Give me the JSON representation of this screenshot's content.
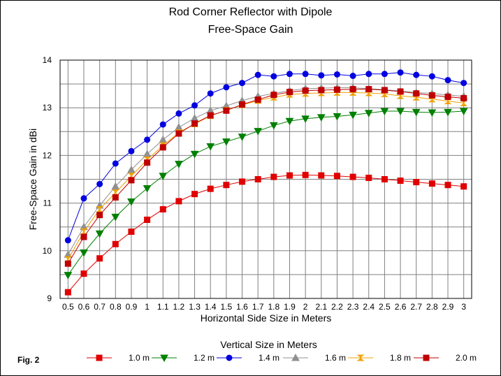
{
  "figure_label": "Fig. 2",
  "chart_data": {
    "type": "line",
    "title": "Rod Corner Reflector with Dipole",
    "subtitle": "Free-Space Gain",
    "xlabel": "Horizontal Side Size in Meters",
    "ylabel": "Free-Space Gain in dBi",
    "legend_title": "Vertical Size in Meters",
    "legend_position": "bottom",
    "grid": true,
    "ylim": [
      9,
      14
    ],
    "yticks": [
      "9",
      "10",
      "11",
      "12",
      "13",
      "14"
    ],
    "categories": [
      "0.5",
      "0.6",
      "0.7",
      "0.8",
      "0.9",
      "1",
      "1.1",
      "1.2",
      "1.3",
      "1.4",
      "1.5",
      "1.6",
      "1.7",
      "1.8",
      "1.9",
      "2",
      "2.1",
      "2.2",
      "2.3",
      "2.4",
      "2.5",
      "2.6",
      "2.7",
      "2.8",
      "2.9",
      "3"
    ],
    "series": [
      {
        "name": "1.0 m",
        "color": "#e00000",
        "marker": "square",
        "values": [
          9.13,
          9.52,
          9.84,
          10.14,
          10.4,
          10.65,
          10.87,
          11.04,
          11.19,
          11.3,
          11.38,
          11.45,
          11.5,
          11.55,
          11.58,
          11.59,
          11.58,
          11.57,
          11.55,
          11.53,
          11.5,
          11.47,
          11.44,
          11.41,
          11.38,
          11.35
        ]
      },
      {
        "name": "1.2 m",
        "color": "#008000",
        "marker": "triangle-down",
        "values": [
          9.49,
          9.96,
          10.36,
          10.71,
          11.03,
          11.31,
          11.57,
          11.82,
          12.03,
          12.19,
          12.29,
          12.39,
          12.51,
          12.63,
          12.72,
          12.77,
          12.8,
          12.82,
          12.85,
          12.89,
          12.93,
          12.93,
          12.91,
          12.9,
          12.91,
          12.93
        ]
      },
      {
        "name": "1.4 m",
        "color": "#0000e0",
        "marker": "circle",
        "values": [
          10.22,
          11.1,
          11.4,
          11.83,
          12.09,
          12.33,
          12.65,
          12.88,
          13.05,
          13.3,
          13.43,
          13.52,
          13.69,
          13.66,
          13.71,
          13.71,
          13.68,
          13.7,
          13.67,
          13.71,
          13.71,
          13.74,
          13.69,
          13.66,
          13.58,
          13.52
        ]
      },
      {
        "name": "1.6 m",
        "color": "#909090",
        "marker": "triangle-up",
        "values": [
          9.92,
          10.5,
          10.95,
          11.35,
          11.7,
          12.03,
          12.33,
          12.59,
          12.78,
          12.94,
          13.04,
          13.15,
          13.24,
          13.3,
          13.36,
          13.4,
          13.41,
          13.42,
          13.42,
          13.4,
          13.38,
          13.35,
          13.32,
          13.3,
          13.27,
          13.24
        ]
      },
      {
        "name": "1.8 m",
        "color": "#f0a000",
        "marker": "hourglass",
        "values": [
          9.82,
          10.4,
          10.87,
          11.22,
          11.57,
          11.91,
          12.21,
          12.48,
          12.66,
          12.83,
          12.95,
          13.06,
          13.15,
          13.22,
          13.28,
          13.3,
          13.31,
          13.32,
          13.32,
          13.31,
          13.29,
          13.25,
          13.22,
          13.18,
          13.14,
          13.1
        ]
      },
      {
        "name": "2.0 m",
        "color": "#c00000",
        "marker": "square",
        "values": [
          9.73,
          10.29,
          10.75,
          11.12,
          11.48,
          11.85,
          12.17,
          12.46,
          12.67,
          12.84,
          12.94,
          13.07,
          13.17,
          13.27,
          13.33,
          13.36,
          13.37,
          13.38,
          13.39,
          13.39,
          13.37,
          13.34,
          13.3,
          13.26,
          13.23,
          13.2
        ]
      }
    ]
  }
}
